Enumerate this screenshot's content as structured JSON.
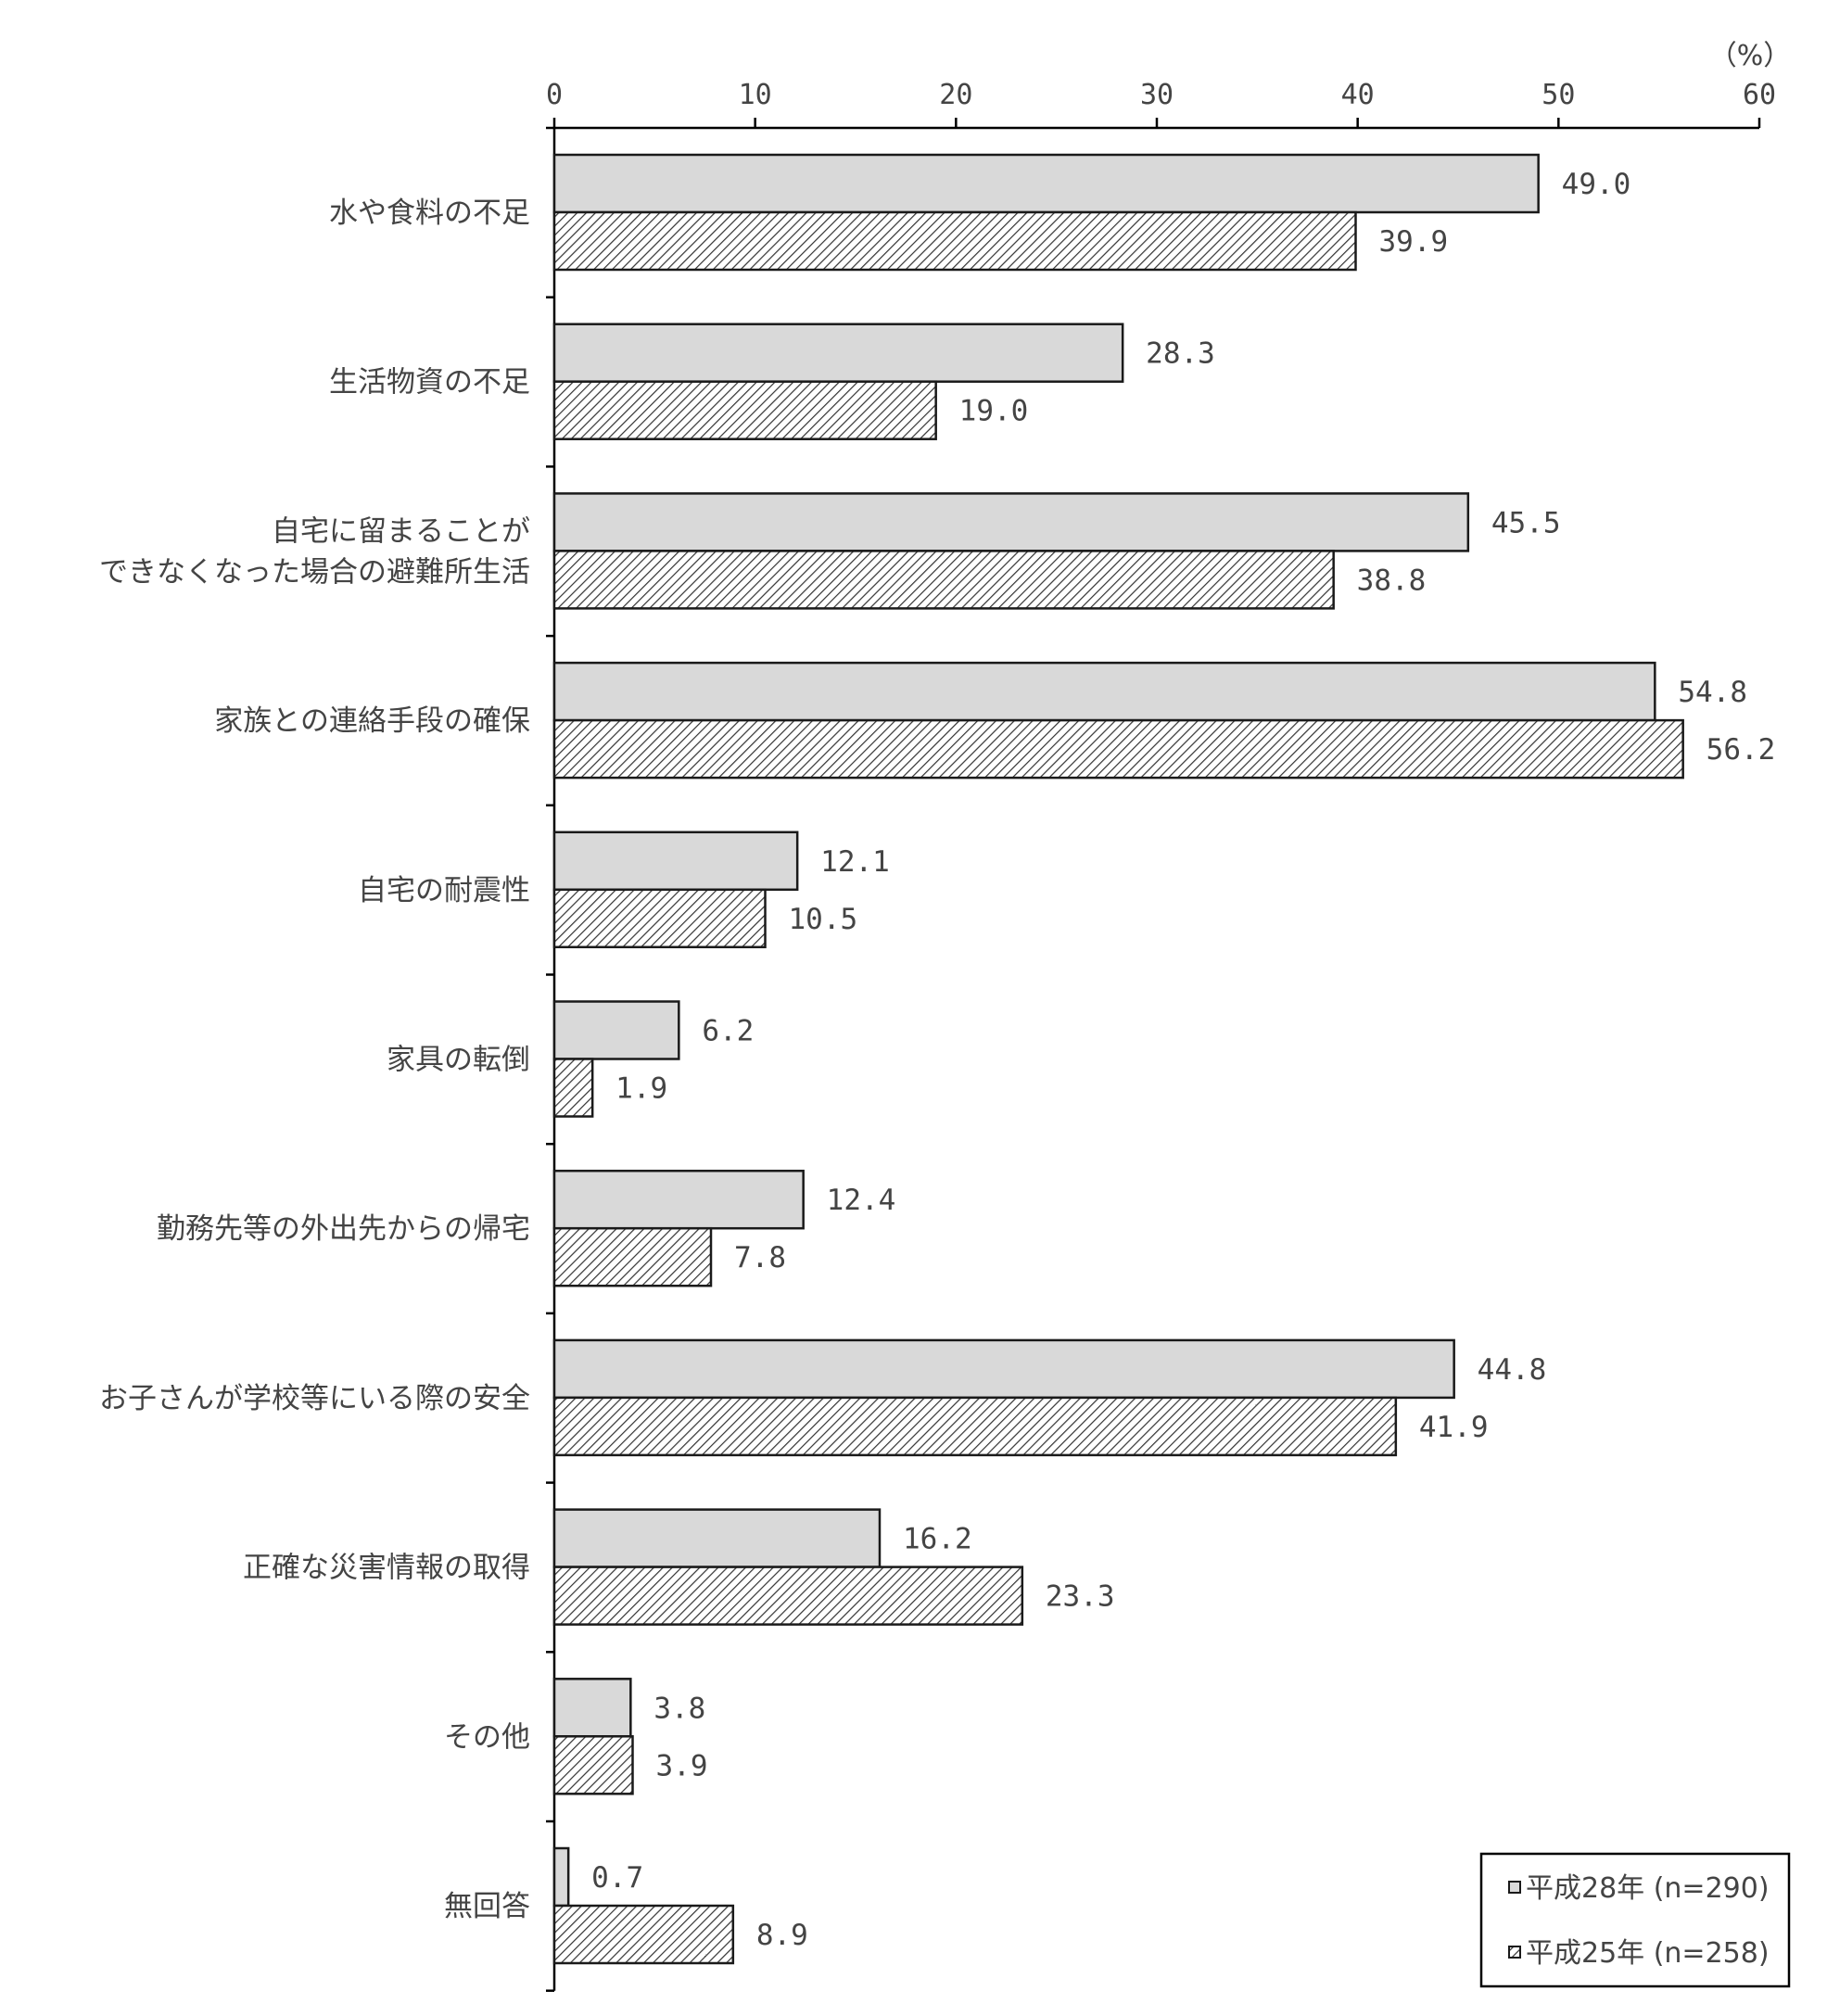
{
  "chart_data": {
    "type": "bar",
    "orientation": "horizontal",
    "unit_label": "（%）",
    "xlim": [
      0,
      60
    ],
    "ticks": [
      0,
      10,
      20,
      30,
      40,
      50,
      60
    ],
    "categories": [
      "水や食料の不足",
      "生活物資の不足",
      "自宅に留まることが\nできなくなった場合の避難所生活",
      "家族との連絡手段の確保",
      "自宅の耐震性",
      "家具の転倒",
      "勤務先等の外出先からの帰宅",
      "お子さんが学校等にいる際の安全",
      "正確な災害情報の取得",
      "その他",
      "無回答"
    ],
    "series": [
      {
        "name": "平成28年 (n=290)",
        "fill": "#d9d9d9",
        "pattern": "solid",
        "values": [
          49.0,
          28.3,
          45.5,
          54.8,
          12.1,
          6.2,
          12.4,
          44.8,
          16.2,
          3.8,
          0.7
        ]
      },
      {
        "name": "平成25年 (n=258)",
        "fill": "#ffffff",
        "pattern": "diagonal-hatch",
        "values": [
          39.9,
          19.0,
          38.8,
          56.2,
          10.5,
          1.9,
          7.8,
          41.9,
          23.3,
          3.9,
          8.9
        ]
      }
    ],
    "grid": false,
    "legend_position": "bottom-right"
  }
}
